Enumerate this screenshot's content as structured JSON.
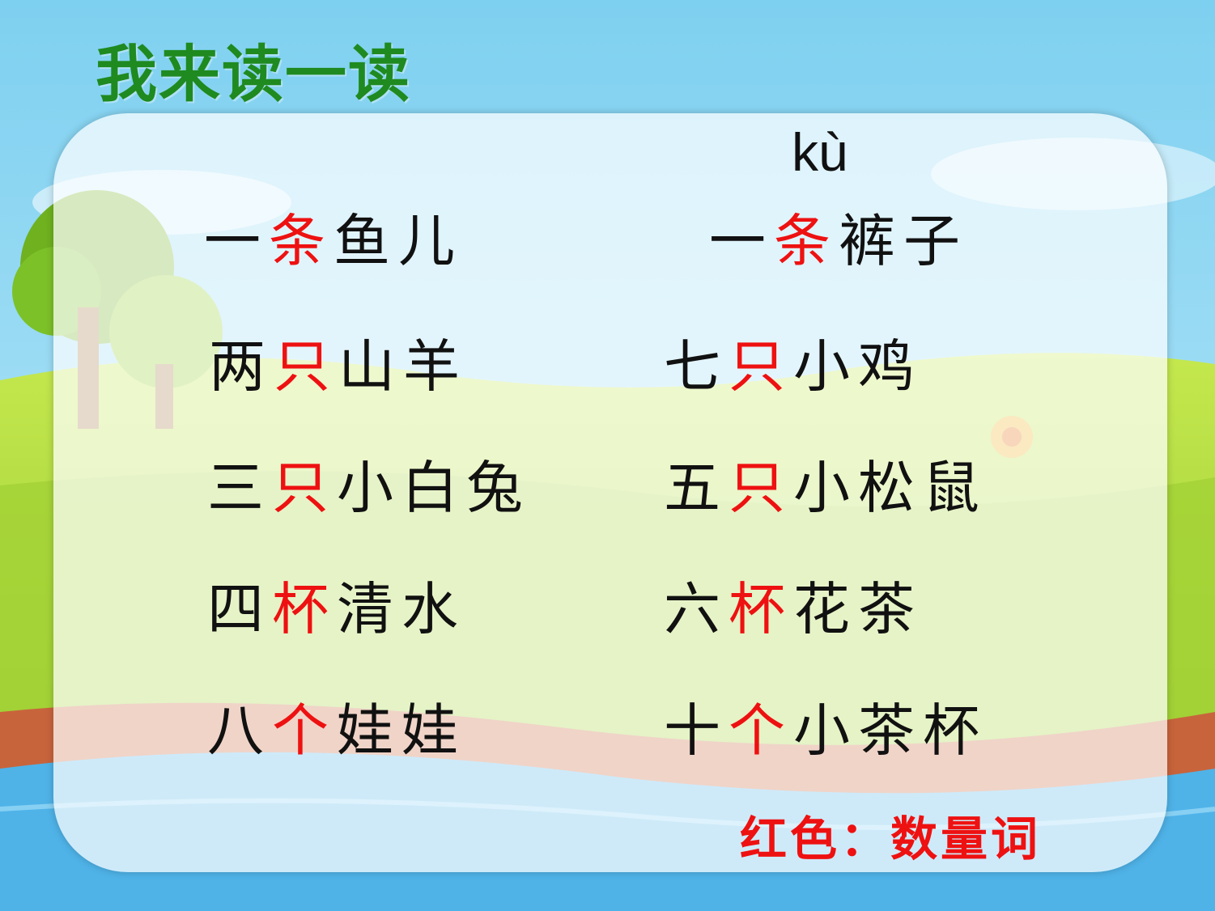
{
  "title": "我来读一读",
  "pinyin": "kù",
  "rows": [
    {
      "left": {
        "num": "一",
        "measure": "条",
        "noun": "鱼儿"
      },
      "right": {
        "num": "一",
        "measure": "条",
        "noun": "裤子"
      }
    },
    {
      "left": {
        "num": "两",
        "measure": "只",
        "noun": "山羊"
      },
      "right": {
        "num": "七",
        "measure": "只",
        "noun": "小鸡"
      }
    },
    {
      "left": {
        "num": "三",
        "measure": "只",
        "noun": "小白兔"
      },
      "right": {
        "num": "五",
        "measure": "只",
        "noun": "小松鼠"
      }
    },
    {
      "left": {
        "num": "四",
        "measure": "杯",
        "noun": "清水"
      },
      "right": {
        "num": "六",
        "measure": "杯",
        "noun": "花茶"
      }
    },
    {
      "left": {
        "num": "八",
        "measure": "个",
        "noun": "娃娃"
      },
      "right": {
        "num": "十",
        "measure": "个",
        "noun": "小茶杯"
      }
    }
  ],
  "legend": "红色：数量词",
  "colors": {
    "title": "#1f8a1f",
    "measure_word": "#ee1111",
    "text": "#111111",
    "sky": "#8fd6f2",
    "grass": "#a6d93a",
    "river": "#4fb3e8"
  }
}
